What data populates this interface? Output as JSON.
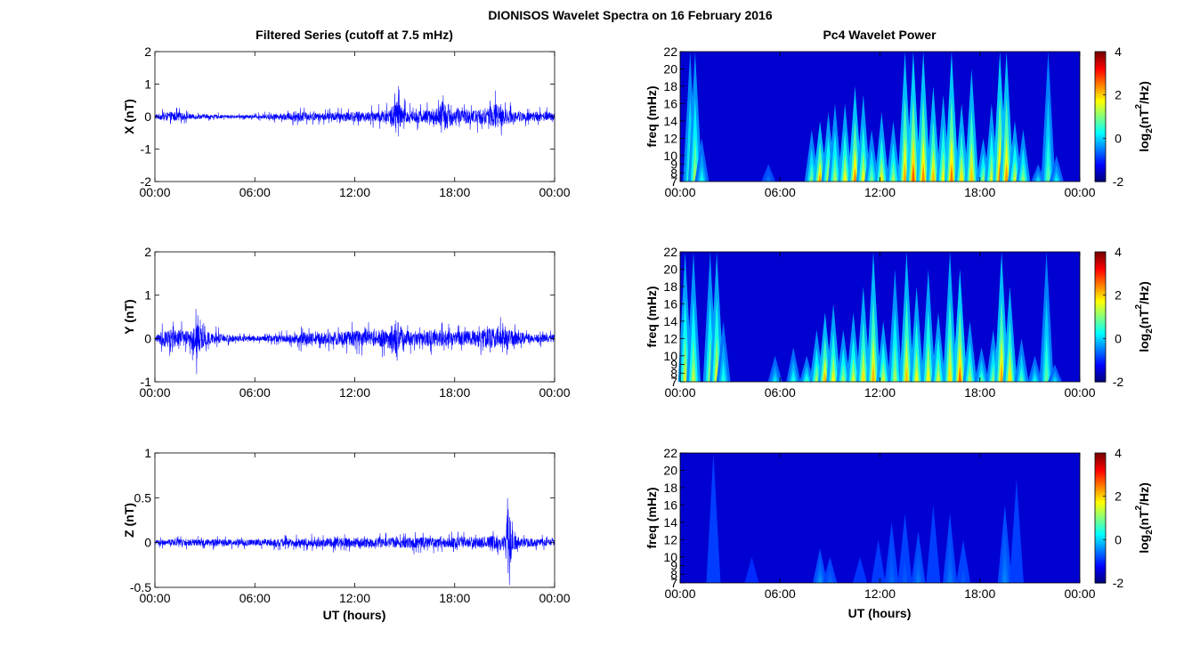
{
  "figure": {
    "suptitle": "DIONISOS Wavelet Spectra on 16 February 2016",
    "left_title": "Filtered Series (cutoff at 7.5 mHz)",
    "right_title": "Pc4 Wavelet Power",
    "x_label": "UT (hours)"
  },
  "chart_data": [
    {
      "type": "line",
      "name": "X",
      "ylabel": "X (nT)",
      "xlim": [
        0,
        24
      ],
      "ylim": [
        -2,
        2
      ],
      "x_ticks": [
        "00:00",
        "06:00",
        "12:00",
        "18:00",
        "00:00"
      ],
      "y_ticks": [
        "2",
        "1",
        "0",
        "-1",
        "-2"
      ],
      "grid": false,
      "series": [
        {
          "color": "#0000ff",
          "envelope_hours": [
            0,
            1,
            2,
            3,
            4,
            5,
            6,
            7,
            8,
            8.5,
            9,
            10,
            11,
            12,
            13,
            14,
            14.5,
            15,
            15.5,
            16,
            17,
            17.5,
            18,
            19,
            20,
            20.5,
            21,
            22,
            23,
            24
          ],
          "envelope_amplitude_nT": [
            0.15,
            0.35,
            0.2,
            0.15,
            0.12,
            0.1,
            0.12,
            0.18,
            0.25,
            0.35,
            0.3,
            0.25,
            0.3,
            0.35,
            0.35,
            0.45,
            1.2,
            0.55,
            0.4,
            0.45,
            0.6,
            1.0,
            0.5,
            0.45,
            0.6,
            0.9,
            0.55,
            0.3,
            0.35,
            0.25
          ]
        }
      ]
    },
    {
      "type": "line",
      "name": "Y",
      "ylabel": "Y (nT)",
      "xlim": [
        0,
        24
      ],
      "ylim": [
        -1,
        2
      ],
      "x_ticks": [
        "00:00",
        "06:00",
        "12:00",
        "18:00",
        "00:00"
      ],
      "y_ticks": [
        "2",
        "1",
        "0",
        "-1"
      ],
      "grid": false,
      "series": [
        {
          "color": "#0000ff",
          "envelope_hours": [
            0,
            0.5,
            1,
            2,
            2.5,
            3,
            4,
            5,
            6,
            7,
            8,
            9,
            10,
            11,
            12,
            13,
            14,
            14.5,
            15,
            16,
            17,
            18,
            19,
            20,
            21,
            22,
            23,
            24
          ],
          "envelope_amplitude_nT": [
            0.15,
            0.4,
            0.5,
            0.4,
            0.9,
            0.35,
            0.25,
            0.15,
            0.12,
            0.15,
            0.2,
            0.35,
            0.3,
            0.35,
            0.4,
            0.4,
            0.5,
            0.95,
            0.4,
            0.35,
            0.45,
            0.35,
            0.4,
            0.55,
            0.5,
            0.3,
            0.2,
            0.2
          ]
        }
      ]
    },
    {
      "type": "line",
      "name": "Z",
      "ylabel": "Z (nT)",
      "xlim": [
        0,
        24
      ],
      "ylim": [
        -0.5,
        1
      ],
      "x_ticks": [
        "00:00",
        "06:00",
        "12:00",
        "18:00",
        "00:00"
      ],
      "y_ticks": [
        "1",
        "0.5",
        "0",
        "-0.5"
      ],
      "grid": false,
      "series": [
        {
          "color": "#0000ff",
          "envelope_hours": [
            0,
            1,
            2,
            3,
            4,
            5,
            6,
            7,
            8,
            9,
            10,
            11,
            12,
            13,
            14,
            15,
            16,
            17,
            18,
            19,
            20,
            21,
            21.2,
            21.5,
            22,
            23,
            24
          ],
          "envelope_amplitude_nT": [
            0.06,
            0.08,
            0.08,
            0.08,
            0.09,
            0.08,
            0.08,
            0.09,
            0.1,
            0.1,
            0.11,
            0.12,
            0.12,
            0.12,
            0.13,
            0.14,
            0.13,
            0.12,
            0.13,
            0.14,
            0.15,
            0.22,
            0.95,
            0.2,
            0.12,
            0.1,
            0.08
          ]
        }
      ]
    },
    {
      "type": "heatmap",
      "name": "X wavelet power",
      "ylabel": "freq (mHz)",
      "xlim": [
        0,
        24
      ],
      "ylim": [
        7,
        22
      ],
      "x_ticks": [
        "00:00",
        "06:00",
        "12:00",
        "18:00",
        "00:00"
      ],
      "y_ticks": [
        "22",
        "20",
        "18",
        "16",
        "14",
        "12",
        "10",
        "9",
        "8",
        "7"
      ],
      "colorbar": {
        "label_main": "log",
        "label_sub": "2",
        "label_rest": "(nT",
        "label_sup": "2",
        "label_end": "/Hz)",
        "ticks": [
          "4",
          "2",
          "0",
          "-2"
        ],
        "range": [
          -2,
          4
        ],
        "colormap": "jet"
      },
      "events": [
        {
          "t": 0.6,
          "top": 22,
          "peak": 1.2
        },
        {
          "t": 0.9,
          "top": 22,
          "peak": 1.5
        },
        {
          "t": 1.3,
          "top": 12,
          "peak": 0.5
        },
        {
          "t": 5.3,
          "top": 9,
          "peak": -0.5
        },
        {
          "t": 7.9,
          "top": 13,
          "peak": 1.2
        },
        {
          "t": 8.4,
          "top": 14,
          "peak": 2.6
        },
        {
          "t": 8.9,
          "top": 15,
          "peak": 1.8
        },
        {
          "t": 9.3,
          "top": 16,
          "peak": 1.5
        },
        {
          "t": 9.9,
          "top": 16,
          "peak": 2.0
        },
        {
          "t": 10.5,
          "top": 18,
          "peak": 2.8
        },
        {
          "t": 11.0,
          "top": 17,
          "peak": 2.0
        },
        {
          "t": 11.5,
          "top": 13,
          "peak": 1.2
        },
        {
          "t": 12.1,
          "top": 15,
          "peak": 2.0
        },
        {
          "t": 12.8,
          "top": 14,
          "peak": 1.5
        },
        {
          "t": 13.5,
          "top": 22,
          "peak": 2.6
        },
        {
          "t": 14.0,
          "top": 22,
          "peak": 3.1
        },
        {
          "t": 14.6,
          "top": 22,
          "peak": 2.8
        },
        {
          "t": 15.2,
          "top": 18,
          "peak": 2.5
        },
        {
          "t": 15.8,
          "top": 17,
          "peak": 2.0
        },
        {
          "t": 16.3,
          "top": 22,
          "peak": 2.9
        },
        {
          "t": 16.9,
          "top": 16,
          "peak": 2.2
        },
        {
          "t": 17.5,
          "top": 20,
          "peak": 2.4
        },
        {
          "t": 18.2,
          "top": 12,
          "peak": 1.5
        },
        {
          "t": 18.7,
          "top": 16,
          "peak": 1.8
        },
        {
          "t": 19.2,
          "top": 22,
          "peak": 3.0
        },
        {
          "t": 19.6,
          "top": 22,
          "peak": 2.7
        },
        {
          "t": 20.1,
          "top": 14,
          "peak": 1.8
        },
        {
          "t": 20.6,
          "top": 13,
          "peak": 1.4
        },
        {
          "t": 21.5,
          "top": 9,
          "peak": 0.3
        },
        {
          "t": 22.1,
          "top": 22,
          "peak": 1.0
        },
        {
          "t": 22.6,
          "top": 10,
          "peak": 0.4
        }
      ]
    },
    {
      "type": "heatmap",
      "name": "Y wavelet power",
      "ylabel": "freq (mHz)",
      "xlim": [
        0,
        24
      ],
      "ylim": [
        7,
        22
      ],
      "x_ticks": [
        "00:00",
        "06:00",
        "12:00",
        "18:00",
        "00:00"
      ],
      "y_ticks": [
        "22",
        "20",
        "18",
        "16",
        "14",
        "12",
        "10",
        "9",
        "8",
        "7"
      ],
      "colorbar": {
        "label_main": "log",
        "label_sub": "2",
        "label_rest": "(nT",
        "label_sup": "2",
        "label_end": "/Hz)",
        "ticks": [
          "4",
          "2",
          "0",
          "-2"
        ],
        "range": [
          -2,
          4
        ],
        "colormap": "jet"
      },
      "events": [
        {
          "t": 0.3,
          "top": 22,
          "peak": 1.8
        },
        {
          "t": 0.8,
          "top": 22,
          "peak": 1.6
        },
        {
          "t": 1.8,
          "top": 22,
          "peak": 1.5
        },
        {
          "t": 2.2,
          "top": 22,
          "peak": 2.0
        },
        {
          "t": 2.6,
          "top": 14,
          "peak": 0.6
        },
        {
          "t": 5.7,
          "top": 10,
          "peak": 0.3
        },
        {
          "t": 6.8,
          "top": 11,
          "peak": 0.6
        },
        {
          "t": 7.6,
          "top": 10,
          "peak": 0.8
        },
        {
          "t": 8.2,
          "top": 13,
          "peak": 1.5
        },
        {
          "t": 8.7,
          "top": 15,
          "peak": 2.5
        },
        {
          "t": 9.2,
          "top": 16,
          "peak": 2.0
        },
        {
          "t": 9.8,
          "top": 13,
          "peak": 1.5
        },
        {
          "t": 10.4,
          "top": 15,
          "peak": 1.8
        },
        {
          "t": 11.0,
          "top": 18,
          "peak": 2.2
        },
        {
          "t": 11.6,
          "top": 22,
          "peak": 2.5
        },
        {
          "t": 12.2,
          "top": 14,
          "peak": 1.8
        },
        {
          "t": 12.9,
          "top": 20,
          "peak": 1.5
        },
        {
          "t": 13.6,
          "top": 22,
          "peak": 2.4
        },
        {
          "t": 14.2,
          "top": 18,
          "peak": 2.0
        },
        {
          "t": 14.9,
          "top": 20,
          "peak": 2.0
        },
        {
          "t": 15.5,
          "top": 15,
          "peak": 1.8
        },
        {
          "t": 16.2,
          "top": 22,
          "peak": 2.2
        },
        {
          "t": 16.8,
          "top": 20,
          "peak": 3.0
        },
        {
          "t": 17.4,
          "top": 14,
          "peak": 1.5
        },
        {
          "t": 18.1,
          "top": 11,
          "peak": 1.0
        },
        {
          "t": 18.8,
          "top": 13,
          "peak": 1.3
        },
        {
          "t": 19.3,
          "top": 22,
          "peak": 2.6
        },
        {
          "t": 19.8,
          "top": 18,
          "peak": 2.2
        },
        {
          "t": 20.5,
          "top": 12,
          "peak": 1.0
        },
        {
          "t": 21.3,
          "top": 10,
          "peak": 0.5
        },
        {
          "t": 22.0,
          "top": 22,
          "peak": 1.0
        },
        {
          "t": 22.5,
          "top": 9,
          "peak": 0.3
        }
      ]
    },
    {
      "type": "heatmap",
      "name": "Z wavelet power",
      "ylabel": "freq (mHz)",
      "xlim": [
        0,
        24
      ],
      "ylim": [
        7,
        22
      ],
      "x_ticks": [
        "00:00",
        "06:00",
        "12:00",
        "18:00",
        "00:00"
      ],
      "y_ticks": [
        "22",
        "20",
        "18",
        "16",
        "14",
        "12",
        "10",
        "9",
        "8",
        "7"
      ],
      "colorbar": {
        "label_main": "log",
        "label_sub": "2",
        "label_rest": "(nT",
        "label_sup": "2",
        "label_end": "/Hz)",
        "ticks": [
          "4",
          "2",
          "0",
          "-2"
        ],
        "range": [
          -2,
          4
        ],
        "colormap": "jet"
      },
      "events": [
        {
          "t": 2.0,
          "top": 22,
          "peak": -0.8
        },
        {
          "t": 4.3,
          "top": 10,
          "peak": -1.3
        },
        {
          "t": 8.4,
          "top": 11,
          "peak": -0.3
        },
        {
          "t": 9.0,
          "top": 10,
          "peak": -0.6
        },
        {
          "t": 10.8,
          "top": 10,
          "peak": -1.0
        },
        {
          "t": 11.9,
          "top": 12,
          "peak": -0.9
        },
        {
          "t": 12.7,
          "top": 14,
          "peak": -0.6
        },
        {
          "t": 13.5,
          "top": 15,
          "peak": -0.7
        },
        {
          "t": 14.3,
          "top": 13,
          "peak": -0.5
        },
        {
          "t": 15.2,
          "top": 16,
          "peak": -0.8
        },
        {
          "t": 16.2,
          "top": 15,
          "peak": -0.5
        },
        {
          "t": 17.0,
          "top": 12,
          "peak": -0.7
        },
        {
          "t": 19.5,
          "top": 16,
          "peak": -0.4
        },
        {
          "t": 20.2,
          "top": 19,
          "peak": -0.8
        }
      ]
    }
  ]
}
